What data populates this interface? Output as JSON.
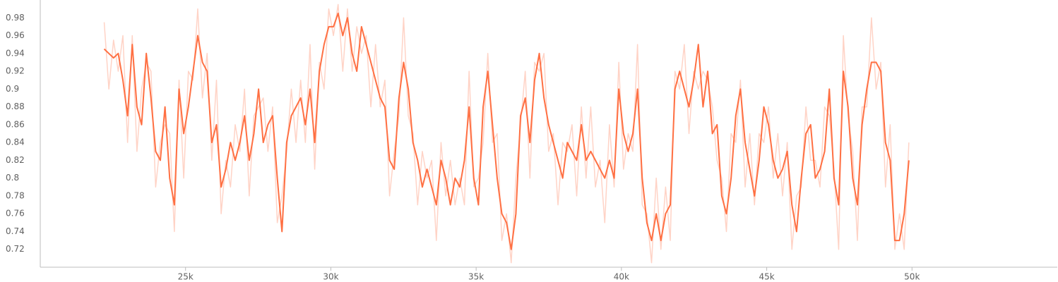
{
  "chart_data": {
    "type": "line",
    "x": [
      22200,
      22361,
      22522,
      22683,
      22844,
      23005,
      23166,
      23327,
      23488,
      23649,
      23810,
      23971,
      24132,
      24293,
      24454,
      24615,
      24776,
      24937,
      25098,
      25259,
      25420,
      25581,
      25742,
      25903,
      26064,
      26225,
      26386,
      26547,
      26708,
      26869,
      27030,
      27191,
      27352,
      27513,
      27674,
      27835,
      27996,
      28157,
      28318,
      28479,
      28640,
      28801,
      28962,
      29123,
      29284,
      29445,
      29606,
      29767,
      29928,
      30089,
      30250,
      30411,
      30572,
      30733,
      30894,
      31055,
      31216,
      31377,
      31538,
      31699,
      31860,
      32021,
      32182,
      32343,
      32504,
      32665,
      32826,
      32987,
      33148,
      33309,
      33470,
      33631,
      33792,
      33953,
      34114,
      34275,
      34436,
      34597,
      34758,
      34919,
      35080,
      35241,
      35402,
      35563,
      35724,
      35885,
      36046,
      36207,
      36368,
      36529,
      36690,
      36851,
      37012,
      37173,
      37334,
      37495,
      37656,
      37817,
      37978,
      38139,
      38300,
      38461,
      38622,
      38783,
      38944,
      39105,
      39266,
      39427,
      39588,
      39749,
      39910,
      40071,
      40232,
      40393,
      40554,
      40715,
      40876,
      41037,
      41198,
      41359,
      41520,
      41681,
      41842,
      42003,
      42164,
      42325,
      42486,
      42647,
      42808,
      42969,
      43130,
      43291,
      43452,
      43613,
      43774,
      43935,
      44096,
      44257,
      44418,
      44579,
      44740,
      44901,
      45062,
      45223,
      45384,
      45545,
      45706,
      45867,
      46028,
      46189,
      46350,
      46511,
      46672,
      46833,
      46994,
      47155,
      47316,
      47477,
      47638,
      47799,
      47960,
      48121,
      48282,
      48443,
      48604,
      48765,
      48926,
      49087,
      49248,
      49409,
      49570,
      49731,
      49892
    ],
    "series": [
      {
        "color": "#ffd3c6",
        "values": [
          0.975,
          0.9,
          0.955,
          0.92,
          0.96,
          0.84,
          0.96,
          0.83,
          0.9,
          0.93,
          0.92,
          0.79,
          0.84,
          0.86,
          0.85,
          0.74,
          0.91,
          0.8,
          0.92,
          0.91,
          0.99,
          0.89,
          0.94,
          0.82,
          0.91,
          0.76,
          0.82,
          0.79,
          0.86,
          0.83,
          0.9,
          0.78,
          0.87,
          0.88,
          0.89,
          0.83,
          0.88,
          0.75,
          0.78,
          0.83,
          0.9,
          0.84,
          0.91,
          0.84,
          0.95,
          0.81,
          0.93,
          0.9,
          0.99,
          0.96,
          0.995,
          0.92,
          0.99,
          0.92,
          0.97,
          0.94,
          0.96,
          0.88,
          0.95,
          0.88,
          0.91,
          0.78,
          0.83,
          0.87,
          0.98,
          0.87,
          0.85,
          0.77,
          0.83,
          0.8,
          0.82,
          0.73,
          0.84,
          0.78,
          0.82,
          0.77,
          0.8,
          0.77,
          0.92,
          0.79,
          0.8,
          0.84,
          0.94,
          0.84,
          0.85,
          0.73,
          0.76,
          0.705,
          0.8,
          0.86,
          0.92,
          0.8,
          0.93,
          0.92,
          0.94,
          0.83,
          0.85,
          0.77,
          0.84,
          0.83,
          0.86,
          0.78,
          0.88,
          0.8,
          0.88,
          0.79,
          0.82,
          0.75,
          0.86,
          0.79,
          0.93,
          0.81,
          0.85,
          0.83,
          0.95,
          0.77,
          0.76,
          0.705,
          0.8,
          0.72,
          0.79,
          0.73,
          0.92,
          0.9,
          0.95,
          0.85,
          0.92,
          0.9,
          0.92,
          0.91,
          0.88,
          0.82,
          0.8,
          0.74,
          0.85,
          0.84,
          0.91,
          0.79,
          0.85,
          0.77,
          0.85,
          0.84,
          0.88,
          0.8,
          0.85,
          0.78,
          0.84,
          0.72,
          0.78,
          0.79,
          0.88,
          0.82,
          0.82,
          0.79,
          0.88,
          0.87,
          0.81,
          0.72,
          0.96,
          0.87,
          0.83,
          0.73,
          0.88,
          0.88,
          0.98,
          0.9,
          0.93,
          0.79,
          0.86,
          0.72,
          0.76,
          0.72,
          0.84
        ]
      },
      {
        "color": "#ff7043",
        "values": [
          0.945,
          0.94,
          0.935,
          0.94,
          0.91,
          0.87,
          0.95,
          0.88,
          0.86,
          0.94,
          0.89,
          0.83,
          0.82,
          0.88,
          0.8,
          0.77,
          0.9,
          0.85,
          0.88,
          0.92,
          0.96,
          0.93,
          0.92,
          0.84,
          0.86,
          0.79,
          0.81,
          0.84,
          0.82,
          0.84,
          0.87,
          0.82,
          0.85,
          0.9,
          0.84,
          0.86,
          0.87,
          0.8,
          0.74,
          0.84,
          0.87,
          0.88,
          0.89,
          0.86,
          0.9,
          0.84,
          0.92,
          0.95,
          0.97,
          0.97,
          0.985,
          0.96,
          0.98,
          0.94,
          0.92,
          0.97,
          0.95,
          0.93,
          0.91,
          0.89,
          0.88,
          0.82,
          0.81,
          0.89,
          0.93,
          0.9,
          0.84,
          0.82,
          0.79,
          0.81,
          0.79,
          0.77,
          0.82,
          0.8,
          0.77,
          0.8,
          0.79,
          0.82,
          0.88,
          0.8,
          0.77,
          0.88,
          0.92,
          0.86,
          0.8,
          0.76,
          0.75,
          0.72,
          0.76,
          0.87,
          0.89,
          0.84,
          0.91,
          0.94,
          0.89,
          0.86,
          0.84,
          0.82,
          0.8,
          0.84,
          0.83,
          0.82,
          0.86,
          0.82,
          0.83,
          0.82,
          0.81,
          0.8,
          0.82,
          0.8,
          0.9,
          0.85,
          0.83,
          0.85,
          0.9,
          0.8,
          0.75,
          0.73,
          0.76,
          0.73,
          0.76,
          0.77,
          0.9,
          0.92,
          0.9,
          0.88,
          0.91,
          0.95,
          0.88,
          0.92,
          0.85,
          0.86,
          0.78,
          0.76,
          0.8,
          0.87,
          0.9,
          0.84,
          0.81,
          0.78,
          0.82,
          0.88,
          0.86,
          0.82,
          0.8,
          0.81,
          0.83,
          0.77,
          0.74,
          0.8,
          0.85,
          0.86,
          0.8,
          0.81,
          0.83,
          0.9,
          0.8,
          0.77,
          0.92,
          0.88,
          0.8,
          0.77,
          0.86,
          0.9,
          0.93,
          0.93,
          0.92,
          0.84,
          0.82,
          0.73,
          0.73,
          0.76,
          0.82
        ]
      }
    ],
    "xlim": [
      20000,
      55000
    ],
    "xticks": [
      {
        "value": 25000,
        "label": "25k"
      },
      {
        "value": 30000,
        "label": "30k"
      },
      {
        "value": 35000,
        "label": "35k"
      },
      {
        "value": 40000,
        "label": "40k"
      },
      {
        "value": 45000,
        "label": "45k"
      },
      {
        "value": 50000,
        "label": "50k"
      }
    ],
    "ylim": [
      0.7,
      1.0
    ],
    "yticks": [
      0.72,
      0.74,
      0.76,
      0.78,
      0.8,
      0.82,
      0.84,
      0.86,
      0.88,
      0.9,
      0.92,
      0.94,
      0.96,
      0.98
    ],
    "grid": false
  }
}
